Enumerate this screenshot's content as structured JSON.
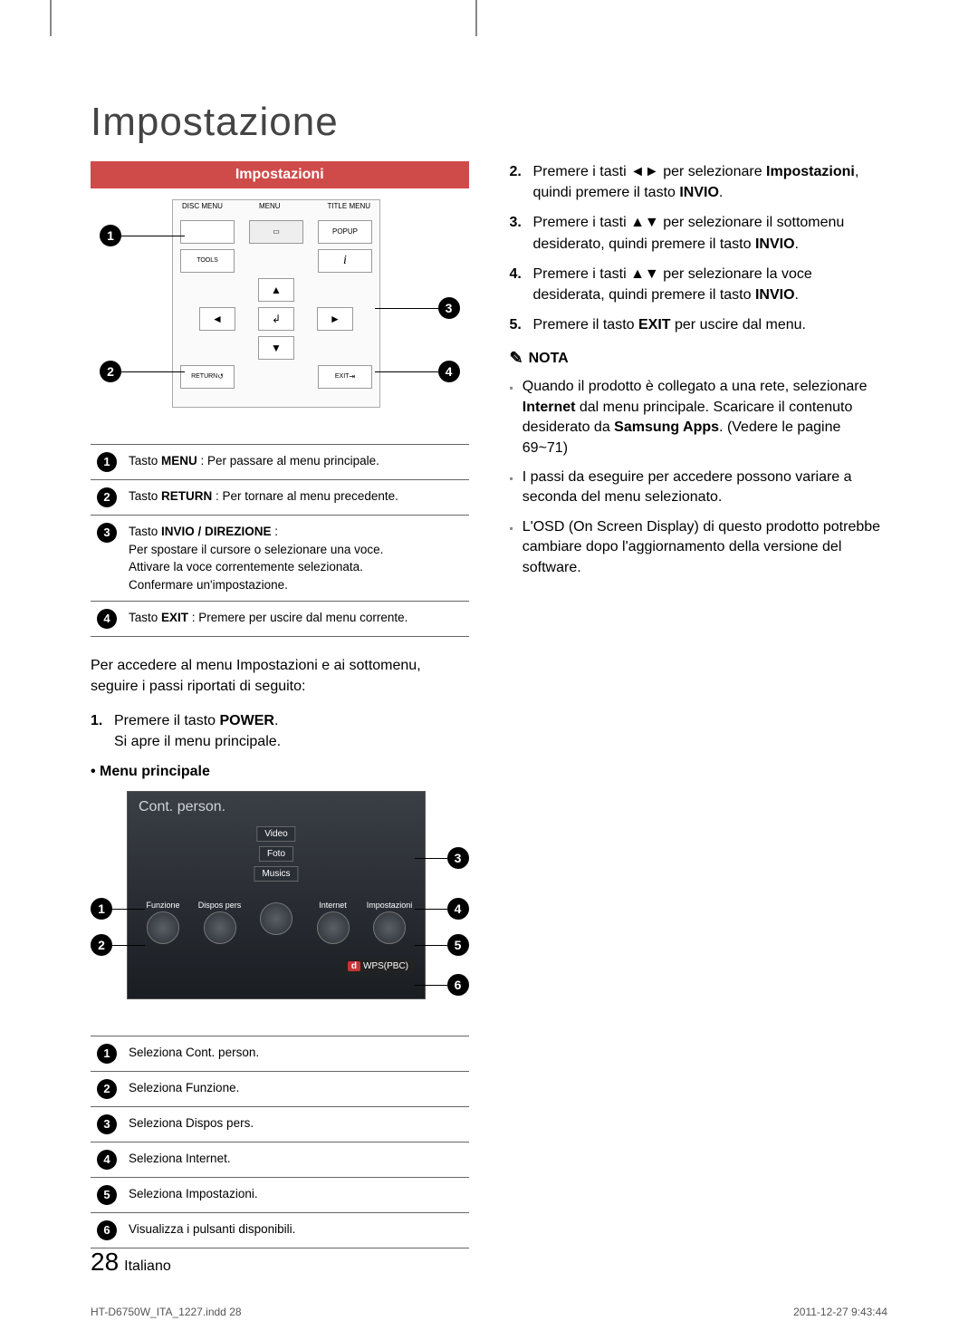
{
  "page": {
    "title": "Impostazione",
    "number": "28",
    "lang": "Italiano"
  },
  "section_header": "Impostazioni",
  "remote": {
    "top_labels": {
      "l": "DISC MENU",
      "c": "MENU",
      "r": "TITLE MENU"
    },
    "popup": "POPUP",
    "tools": "TOOLS",
    "info": "INFO",
    "return": "RETURN",
    "exit": "EXIT",
    "callouts": {
      "n1": "1",
      "n2": "2",
      "n3": "3",
      "n4": "4"
    }
  },
  "legend1": {
    "rows": [
      {
        "n": "1",
        "html": "Tasto <b>MENU</b> : Per passare al menu principale."
      },
      {
        "n": "2",
        "html": "Tasto <b>RETURN</b> : Per tornare al menu precedente."
      },
      {
        "n": "3",
        "html": "Tasto <b>INVIO / DIREZIONE</b> :<br>Per spostare il cursore o selezionare una voce.<br>Attivare la voce correntemente selezionata.<br>Confermare un'impostazione."
      },
      {
        "n": "4",
        "html": "Tasto <b>EXIT</b> : Premere per uscire dal menu corrente."
      }
    ]
  },
  "intro": "Per accedere al menu Impostazioni e ai sottomenu, seguire i passi riportati di seguito:",
  "step1": {
    "n": "1.",
    "html": "Premere il tasto <b>POWER</b>.<br>Si apre il menu principale."
  },
  "bullet_menu": "• Menu principale",
  "menu": {
    "title": "Cont. person.",
    "stack": [
      "Video",
      "Foto",
      "Musics"
    ],
    "items": [
      "Funzione",
      "Dispos pers",
      "",
      "Internet",
      "Impostazioni"
    ],
    "foot_key": "d",
    "foot_text": "WPS(PBC)",
    "callouts": {
      "n1": "1",
      "n2": "2",
      "n3": "3",
      "n4": "4",
      "n5": "5",
      "n6": "6"
    }
  },
  "legend2": {
    "rows": [
      {
        "n": "1",
        "t": "Seleziona Cont. person."
      },
      {
        "n": "2",
        "t": "Seleziona Funzione."
      },
      {
        "n": "3",
        "t": "Seleziona Dispos pers."
      },
      {
        "n": "4",
        "t": "Seleziona Internet."
      },
      {
        "n": "5",
        "t": "Seleziona Impostazioni."
      },
      {
        "n": "6",
        "t": "Visualizza i pulsanti disponibili."
      }
    ]
  },
  "right_steps": [
    {
      "n": "2.",
      "html": "Premere i tasti ◄► per selezionare <b>Impostazioni</b>, quindi premere il tasto <b>INVIO</b>."
    },
    {
      "n": "3.",
      "html": "Premere i tasti ▲▼ per selezionare il sottomenu desiderato, quindi premere il tasto <b>INVIO</b>."
    },
    {
      "n": "4.",
      "html": "Premere i tasti ▲▼ per selezionare la voce desiderata, quindi premere il tasto <b>INVIO</b>."
    },
    {
      "n": "5.",
      "html": "Premere il tasto <b>EXIT</b> per uscire dal menu."
    }
  ],
  "note_title": "NOTA",
  "notes": [
    "Quando il prodotto è collegato a una rete, selezionare <b>Internet</b> dal menu principale. Scaricare il contenuto desiderato da  <b>Samsung Apps</b>. (Vedere le pagine 69~71)",
    "I passi da eseguire per accedere possono variare a seconda del menu selezionato.",
    "L'OSD (On Screen Display) di questo prodotto potrebbe cambiare dopo l'aggiornamento della versione del software."
  ],
  "meta": {
    "file": "HT-D6750W_ITA_1227.indd   28",
    "date": "2011-12-27   9:43:44"
  },
  "colors": {
    "accent": "#cf4b4a",
    "text": "#000000",
    "muted": "#888888"
  }
}
